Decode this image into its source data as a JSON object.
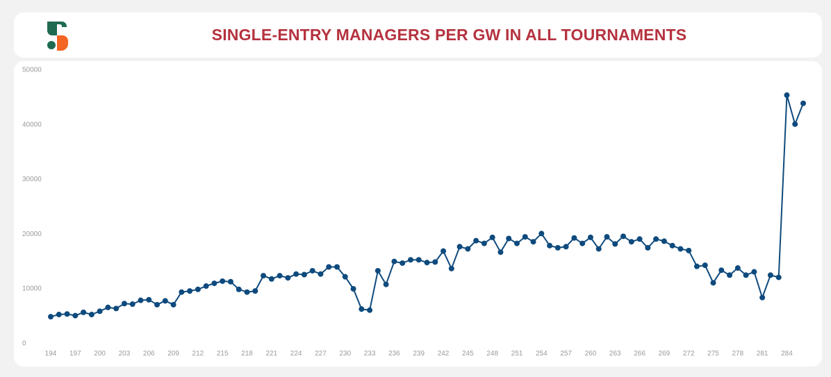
{
  "header": {
    "title": "SINGLE-ENTRY MANAGERS PER GW IN ALL TOURNAMENTS",
    "logo_icon": "s-logo-icon"
  },
  "colors": {
    "title": "#b5323f",
    "line": "#0e4a7d",
    "logo_green": "#1e6b52",
    "logo_orange": "#f26522"
  },
  "chart_data": {
    "type": "line",
    "title": "SINGLE-ENTRY MANAGERS PER GW IN ALL TOURNAMENTS",
    "xlabel": "",
    "ylabel": "",
    "ylim": [
      0,
      50000
    ],
    "yticks": [
      0,
      10000,
      20000,
      30000,
      40000,
      50000
    ],
    "xlim": [
      194,
      286
    ],
    "xticks": [
      194,
      197,
      200,
      203,
      206,
      209,
      212,
      215,
      218,
      221,
      224,
      227,
      230,
      233,
      236,
      239,
      242,
      245,
      248,
      251,
      254,
      257,
      260,
      263,
      266,
      269,
      272,
      275,
      278,
      281,
      284
    ],
    "x": [
      194,
      195,
      196,
      197,
      198,
      199,
      200,
      201,
      202,
      203,
      204,
      205,
      206,
      207,
      208,
      209,
      210,
      211,
      212,
      213,
      214,
      215,
      216,
      217,
      218,
      219,
      220,
      221,
      222,
      223,
      224,
      225,
      226,
      227,
      228,
      229,
      230,
      231,
      232,
      233,
      234,
      235,
      236,
      237,
      238,
      239,
      240,
      241,
      242,
      243,
      244,
      245,
      246,
      247,
      248,
      249,
      250,
      251,
      252,
      253,
      254,
      255,
      256,
      257,
      258,
      259,
      260,
      261,
      262,
      263,
      264,
      265,
      266,
      267,
      268,
      269,
      270,
      271,
      272,
      273,
      274,
      275,
      276,
      277,
      278,
      279,
      280,
      281,
      282,
      283,
      284,
      285,
      286
    ],
    "series": [
      {
        "name": "Single-entry managers",
        "values": [
          4800,
          5200,
          5300,
          5000,
          5600,
          5200,
          5800,
          6500,
          6300,
          7200,
          7100,
          7800,
          7900,
          7000,
          7700,
          7000,
          9300,
          9500,
          9800,
          10400,
          10900,
          11300,
          11200,
          9800,
          9300,
          9500,
          12300,
          11700,
          12300,
          11900,
          12600,
          12500,
          13200,
          12600,
          13900,
          13900,
          12100,
          9900,
          6200,
          6000,
          13200,
          10700,
          14900,
          14600,
          15200,
          15200,
          14700,
          14800,
          16800,
          13600,
          17600,
          17200,
          18700,
          18200,
          19300,
          16600,
          19100,
          18200,
          19400,
          18500,
          20000,
          17800,
          17400,
          17600,
          19200,
          18200,
          19300,
          17200,
          19400,
          18100,
          19500,
          18500,
          19000,
          17400,
          19000,
          18600,
          17800,
          17200,
          16900,
          14000,
          14200,
          11000,
          13300,
          12400,
          13700,
          12400,
          13000,
          8300,
          12400,
          12000,
          45300,
          40000,
          43800
        ]
      }
    ]
  }
}
